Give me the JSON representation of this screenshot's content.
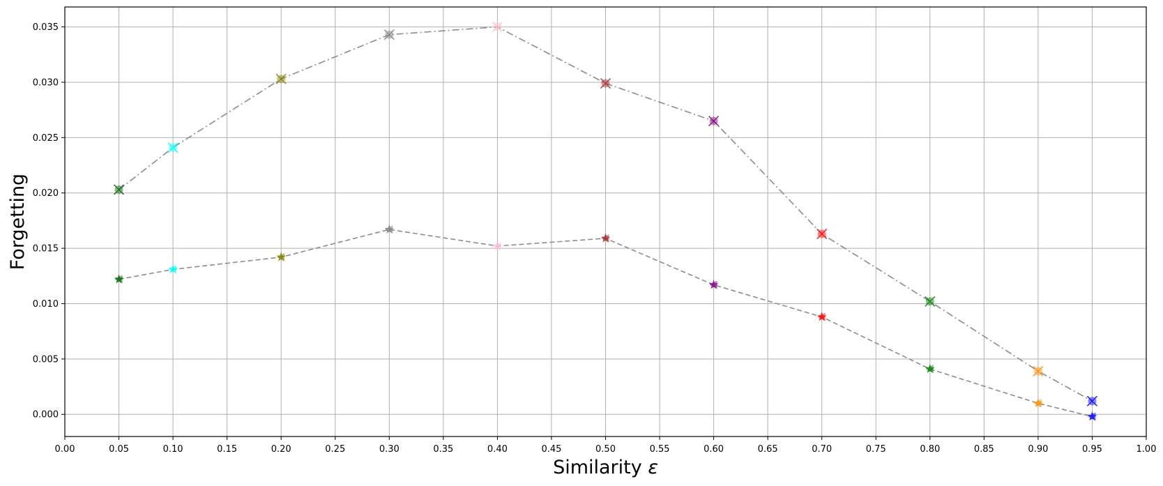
{
  "chart_data": {
    "type": "line",
    "title": "",
    "xlabel": "Similarity",
    "xlabel_symbol": "ε",
    "ylabel": "Forgetting",
    "xlim": [
      0.0,
      1.0
    ],
    "ylim": [
      -0.002,
      0.0368
    ],
    "grid": true,
    "legend": "none",
    "xticks": [
      0.0,
      0.05,
      0.1,
      0.15,
      0.2,
      0.25,
      0.3,
      0.35,
      0.4,
      0.45,
      0.5,
      0.55,
      0.6,
      0.65,
      0.7,
      0.75,
      0.8,
      0.85,
      0.9,
      0.95,
      1.0
    ],
    "xtick_labels": [
      "0.00",
      "0.05",
      "0.10",
      "0.15",
      "0.20",
      "0.25",
      "0.30",
      "0.35",
      "0.40",
      "0.45",
      "0.50",
      "0.55",
      "0.60",
      "0.65",
      "0.70",
      "0.75",
      "0.80",
      "0.85",
      "0.90",
      "0.95",
      "1.00"
    ],
    "yticks": [
      0.0,
      0.005,
      0.01,
      0.015,
      0.02,
      0.025,
      0.03,
      0.035
    ],
    "ytick_labels": [
      "0.000",
      "0.005",
      "0.010",
      "0.015",
      "0.020",
      "0.025",
      "0.030",
      "0.035"
    ],
    "x": [
      0.05,
      0.1,
      0.2,
      0.3,
      0.4,
      0.5,
      0.6,
      0.7,
      0.8,
      0.9,
      0.95
    ],
    "point_colors": [
      "#006400",
      "#00ffff",
      "#808000",
      "#808080",
      "#ffc0cb",
      "#a52a2a",
      "#800080",
      "#ff0000",
      "#008000",
      "#ff8c00",
      "#0000ff"
    ],
    "line_color": "#8c8c8c",
    "series": [
      {
        "line_style": "dashdot",
        "marker": "x-circle",
        "values": [
          0.0203,
          0.0241,
          0.0303,
          0.0343,
          0.035,
          0.0299,
          0.0265,
          0.0163,
          0.0102,
          0.0039,
          0.0012
        ]
      },
      {
        "line_style": "dashed",
        "marker": "star-triangle",
        "values": [
          0.0122,
          0.0131,
          0.0142,
          0.0167,
          0.0152,
          0.0159,
          0.0117,
          0.0088,
          0.0041,
          0.001,
          -0.0002
        ]
      }
    ]
  }
}
